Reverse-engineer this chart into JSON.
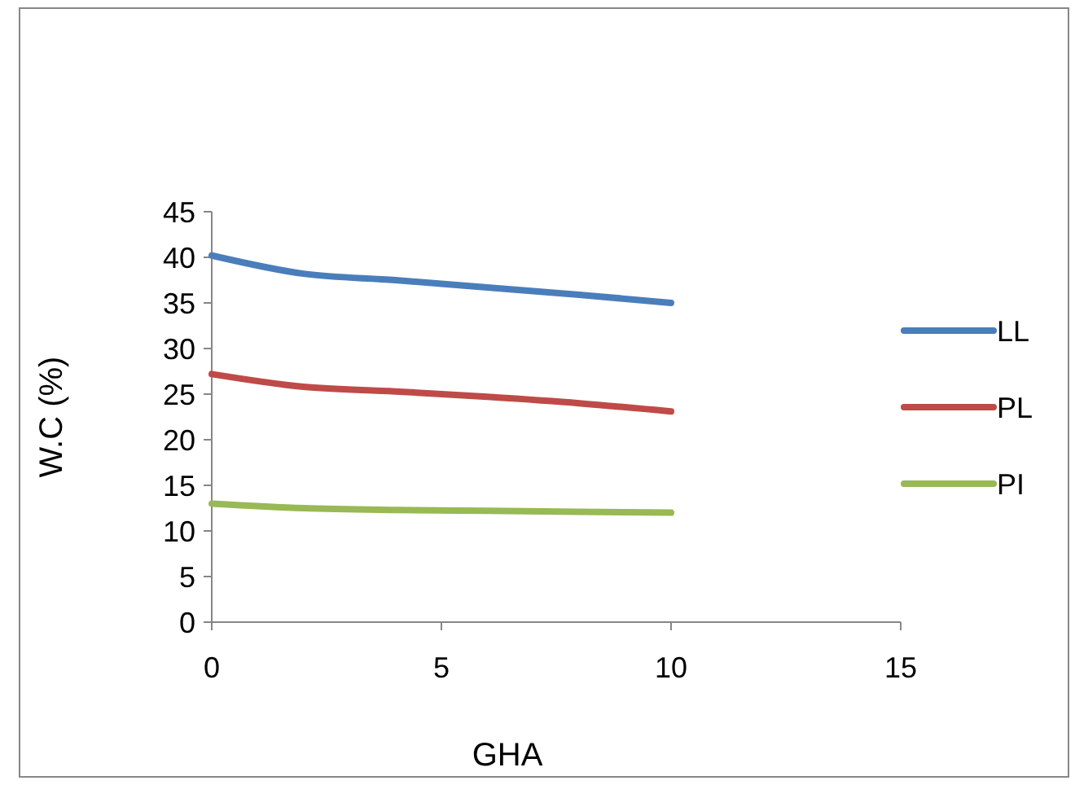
{
  "chart_data": {
    "type": "line",
    "xlabel": "GHA",
    "ylabel": "W.C (%)",
    "x": [
      0,
      2,
      4,
      6,
      8,
      10
    ],
    "series": [
      {
        "name": "LL",
        "color": "#4a7ebb",
        "values": [
          40.2,
          38.2,
          37.5,
          36.7,
          35.9,
          35
        ]
      },
      {
        "name": "PL",
        "color": "#be4b48",
        "values": [
          27.2,
          25.8,
          25.3,
          24.7,
          24,
          23.1
        ]
      },
      {
        "name": "PI",
        "color": "#98b954",
        "values": [
          13,
          12.5,
          12.3,
          12.2,
          12.1,
          12
        ]
      }
    ],
    "xlim": [
      0,
      15
    ],
    "xticks": [
      0,
      5,
      10,
      15
    ],
    "ylim": [
      0,
      45
    ],
    "yticks": [
      0,
      5,
      10,
      15,
      20,
      25,
      30,
      35,
      40,
      45
    ],
    "grid": false,
    "legend": "right",
    "marker": "none",
    "line_style": "solid"
  }
}
